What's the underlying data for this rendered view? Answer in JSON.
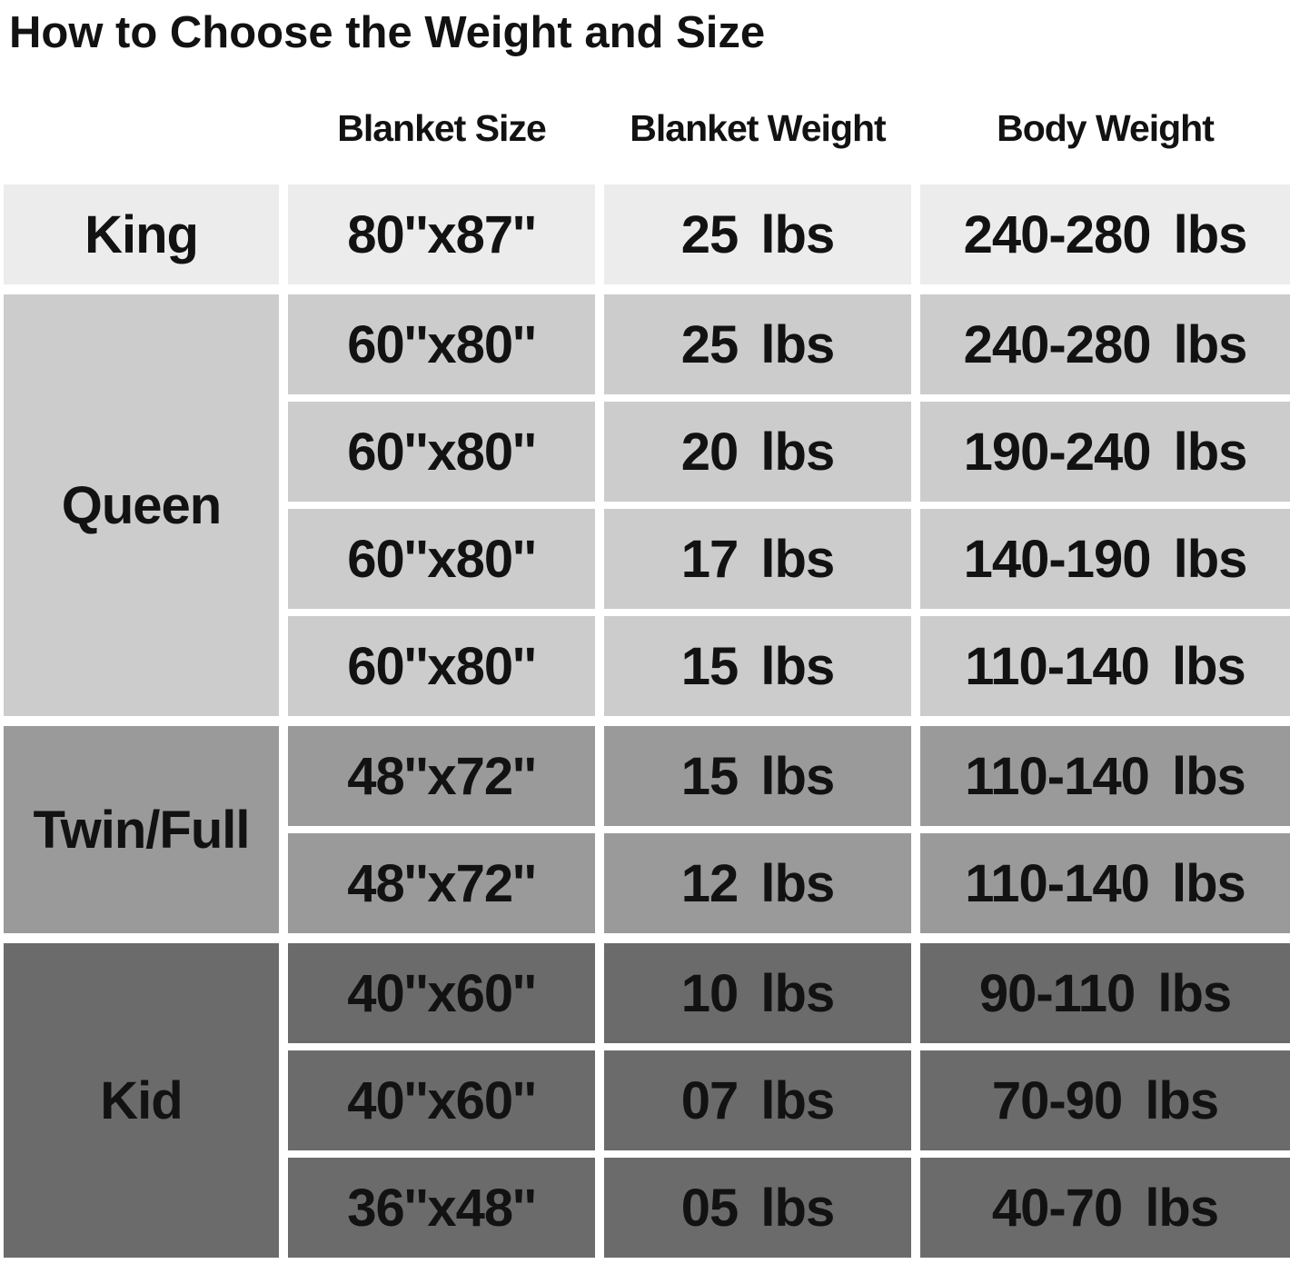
{
  "page": {
    "title": "How to Choose the Weight and Size"
  },
  "table": {
    "headers": [
      "Blanket Size",
      "Blanket Weight",
      "Body Weight"
    ],
    "groups": [
      {
        "label": "King",
        "bg": "#ececec",
        "rows": [
          {
            "size": "80''x87''",
            "weight": "25 lbs",
            "body": "240-280 lbs"
          }
        ]
      },
      {
        "label": "Queen",
        "bg": "#cccccc",
        "rows": [
          {
            "size": "60''x80''",
            "weight": "25 lbs",
            "body": "240-280 lbs"
          },
          {
            "size": "60''x80''",
            "weight": "20 lbs",
            "body": "190-240 lbs"
          },
          {
            "size": "60''x80''",
            "weight": "17 lbs",
            "body": "140-190 lbs"
          },
          {
            "size": "60''x80''",
            "weight": "15 lbs",
            "body": "110-140 lbs"
          }
        ]
      },
      {
        "label": "Twin/Full",
        "bg": "#9a9a9a",
        "rows": [
          {
            "size": "48''x72''",
            "weight": "15 lbs",
            "body": "110-140 lbs"
          },
          {
            "size": "48''x72''",
            "weight": "12 lbs",
            "body": "110-140 lbs"
          }
        ]
      },
      {
        "label": "Kid",
        "bg": "#6b6b6b",
        "rows": [
          {
            "size": "40''x60''",
            "weight": "10 lbs",
            "body": "90-110 lbs"
          },
          {
            "size": "40''x60''",
            "weight": "07 lbs",
            "body": "70-90 lbs"
          },
          {
            "size": "36''x48''",
            "weight": "05 lbs",
            "body": "40-70 lbs"
          }
        ]
      }
    ]
  },
  "colors": {
    "page_background": "#ffffff",
    "text": "#121212",
    "king_row_bg": "#ececec",
    "queen_row_bg": "#cccccc",
    "twin_full_row_bg": "#9a9a9a",
    "kid_row_bg": "#6b6b6b"
  },
  "chart_data": {
    "type": "table",
    "title": "How to Choose the Weight and Size",
    "columns": [
      "",
      "Blanket Size",
      "Blanket Weight",
      "Body Weight"
    ],
    "rows": [
      [
        "King",
        "80''x87''",
        "25 lbs",
        "240-280 lbs"
      ],
      [
        "Queen",
        "60''x80''",
        "25 lbs",
        "240-280 lbs"
      ],
      [
        "Queen",
        "60''x80''",
        "20 lbs",
        "190-240 lbs"
      ],
      [
        "Queen",
        "60''x80''",
        "17 lbs",
        "140-190 lbs"
      ],
      [
        "Queen",
        "60''x80''",
        "15 lbs",
        "110-140 lbs"
      ],
      [
        "Twin/Full",
        "48''x72''",
        "15 lbs",
        "110-140 lbs"
      ],
      [
        "Twin/Full",
        "48''x72''",
        "12 lbs",
        "110-140 lbs"
      ],
      [
        "Kid",
        "40''x60''",
        "10 lbs",
        "90-110 lbs"
      ],
      [
        "Kid",
        "40''x60''",
        "07 lbs",
        "70-90 lbs"
      ],
      [
        "Kid",
        "36''x48''",
        "05 lbs",
        "40-70 lbs"
      ]
    ],
    "layout": {
      "row_group_shading": [
        "#ececec",
        "#cccccc",
        "#9a9a9a",
        "#6b6b6b"
      ],
      "gridlines": "white gutters between cells",
      "first_column_header": "none"
    }
  }
}
